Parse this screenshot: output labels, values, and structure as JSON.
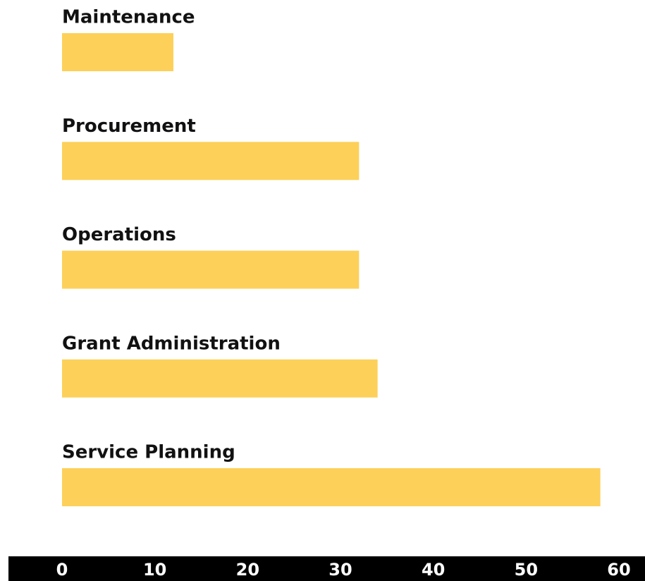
{
  "chart_data": {
    "type": "bar",
    "orientation": "horizontal",
    "categories": [
      "Maintenance",
      "Procurement",
      "Operations",
      "Grant Administration",
      "Service Planning"
    ],
    "values": [
      12,
      32,
      32,
      34,
      58
    ],
    "color": "#fdd05a",
    "xlim": [
      0,
      60
    ],
    "xticks": [
      0,
      10,
      20,
      30,
      40,
      50,
      60
    ]
  }
}
